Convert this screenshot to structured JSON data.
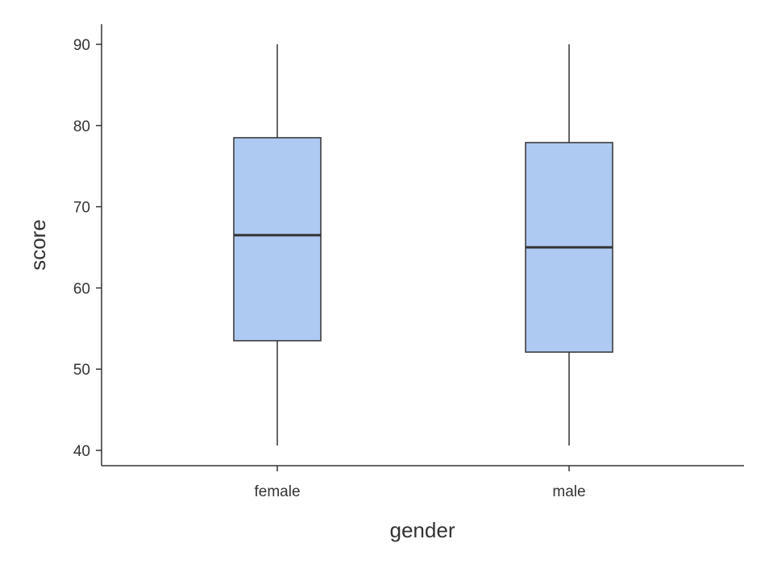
{
  "chart_data": {
    "type": "boxplot",
    "title": "",
    "xlabel": "gender",
    "ylabel": "score",
    "categories": [
      "female",
      "male"
    ],
    "boxes": [
      {
        "category": "female",
        "whisker_low": 40.6,
        "q1": 53.5,
        "median": 66.5,
        "q3": 78.5,
        "whisker_high": 90
      },
      {
        "category": "male",
        "whisker_low": 40.6,
        "q1": 52.1,
        "median": 65,
        "q3": 77.9,
        "whisker_high": 90
      }
    ],
    "ylim": [
      38,
      92.5
    ],
    "yticks": [
      40,
      50,
      60,
      70,
      80,
      90
    ],
    "grid": false,
    "colors": {
      "box_fill": "#aec9f2",
      "line": "#333333"
    }
  }
}
